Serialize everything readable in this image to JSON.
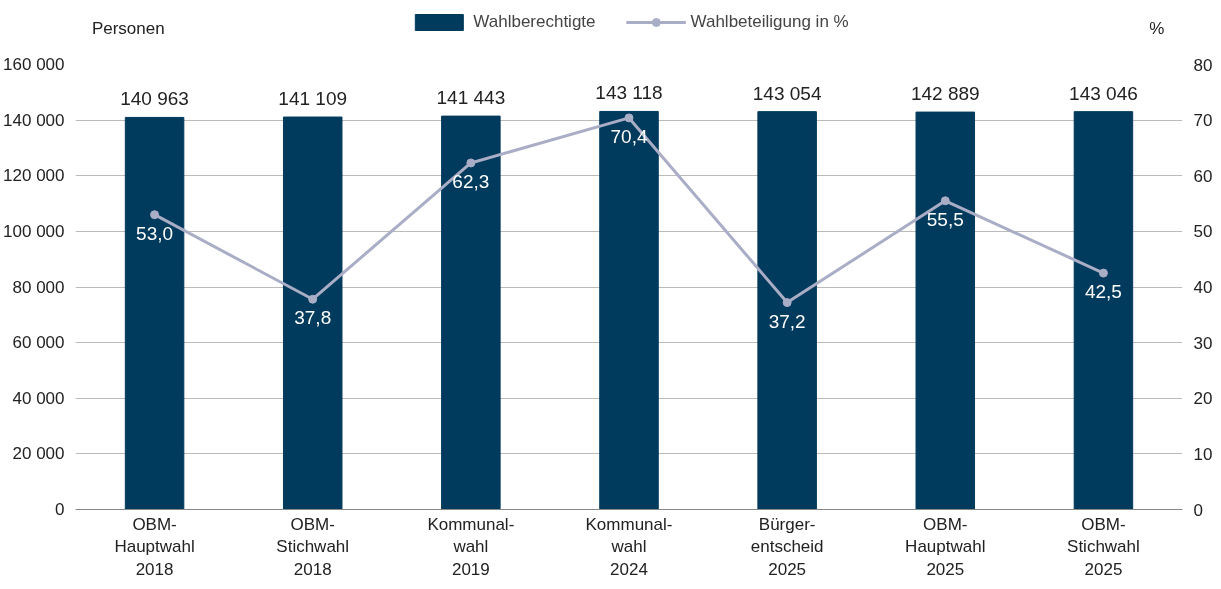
{
  "chart_data": {
    "type": "bar",
    "ylabel": "Personen",
    "y2label": "%",
    "categories": [
      "OBM-\nHauptwahl\n2018",
      "OBM-\nStichwahl\n2018",
      "Kommunal-\nwahl\n2019",
      "Kommunal-\nwahl\n2024",
      "Bürger-\nentscheid\n2025",
      "OBM-\nHauptwahl\n2025",
      "OBM-\nStichwahl\n2025"
    ],
    "series": [
      {
        "name": "Wahlberechtigte",
        "color": "#003a5c",
        "values": [
          140963,
          141109,
          141443,
          143118,
          143054,
          142889,
          143046
        ],
        "value_labels": [
          "140 963",
          "141 109",
          "141 443",
          "143 118",
          "143 054",
          "142 889",
          "143 046"
        ]
      },
      {
        "name": "Wahlbeteiligung in %",
        "type": "line",
        "axis": "y2",
        "color": "#a9adc6",
        "marker": "circle",
        "values": [
          53.0,
          37.8,
          62.3,
          70.4,
          37.2,
          55.5,
          42.5
        ],
        "value_labels": [
          "53,0",
          "37,8",
          "62,3",
          "70,4",
          "37,2",
          "55,5",
          "42,5"
        ]
      }
    ],
    "ylim": [
      0,
      160000
    ],
    "yticks": [
      {
        "value": 0,
        "label": "0"
      },
      {
        "value": 20000,
        "label": "20 000"
      },
      {
        "value": 40000,
        "label": "40 000"
      },
      {
        "value": 60000,
        "label": "60 000"
      },
      {
        "value": 80000,
        "label": "80 000"
      },
      {
        "value": 100000,
        "label": "100 000"
      },
      {
        "value": 120000,
        "label": "120 000"
      },
      {
        "value": 140000,
        "label": "140 000"
      },
      {
        "value": 160000,
        "label": "160 000"
      }
    ],
    "y2lim": [
      0,
      80
    ],
    "y2ticks": [
      0,
      10,
      20,
      30,
      40,
      50,
      60,
      70,
      80
    ],
    "grid": "y",
    "legend": "top"
  }
}
